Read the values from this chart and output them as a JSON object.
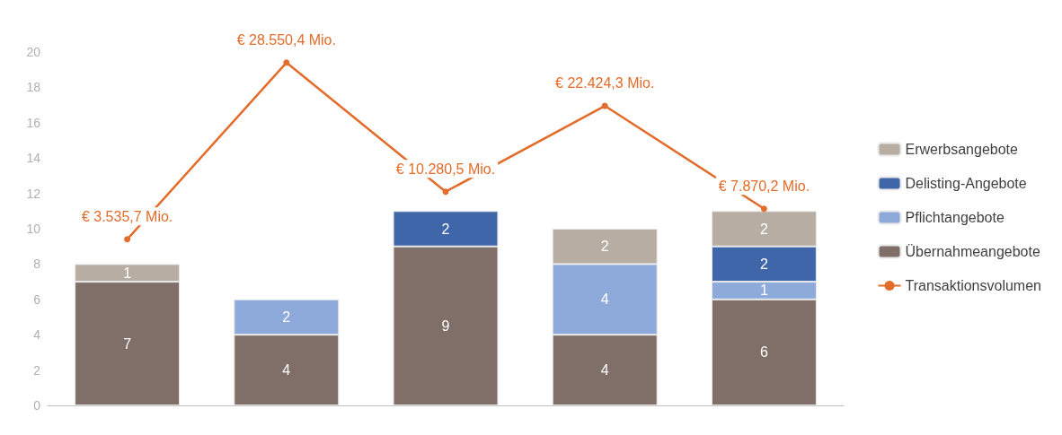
{
  "chart_data": {
    "type": "bar",
    "stacked": true,
    "categories": [
      null,
      null,
      null,
      null,
      null
    ],
    "series": [
      {
        "name": "Übernahmeangebote",
        "color": "#7f6f68",
        "values": [
          7,
          4,
          9,
          4,
          6
        ]
      },
      {
        "name": "Pflichtangebote",
        "color": "#8eaadb",
        "values": [
          null,
          2,
          null,
          4,
          1
        ]
      },
      {
        "name": "Delisting-Angebote",
        "color": "#3e66a8",
        "values": [
          null,
          null,
          2,
          null,
          2
        ]
      },
      {
        "name": "Erwerbsangebote",
        "color": "#b8ada3",
        "values": [
          1,
          null,
          null,
          2,
          2
        ]
      },
      {
        "name": "Transaktionsvolumen",
        "type": "line",
        "axis": "y2",
        "color": "#e36c2a",
        "values": [
          3535.7,
          28550.4,
          10280.5,
          22424.3,
          7870.2
        ],
        "value_labels": [
          "€ 3.535,7 Mio.",
          "€ 28.550,4 Mio.",
          "€ 10.280,5 Mio.",
          "€ 22.424,3 Mio.",
          "€ 7.870,2 Mio."
        ]
      }
    ],
    "ylim": [
      0,
      20
    ],
    "yticks": [
      0,
      2,
      4,
      6,
      8,
      10,
      12,
      14,
      16,
      18,
      20
    ],
    "tick_labels": "y",
    "data_labels": true,
    "grid": false,
    "legend": "right",
    "marker": "circle",
    "line_style": "solid"
  }
}
